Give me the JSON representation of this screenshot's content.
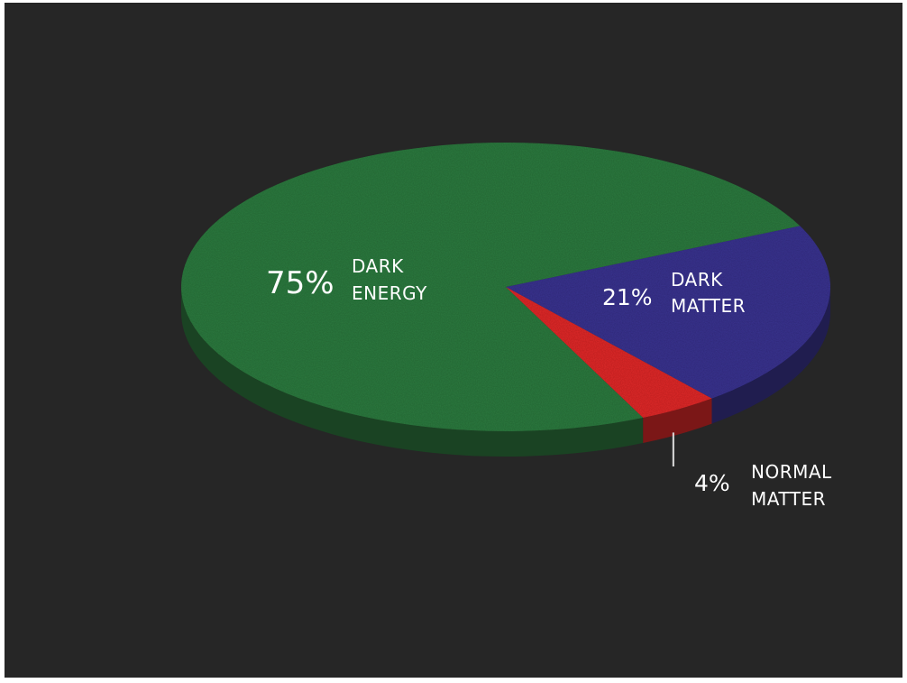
{
  "chart_data": {
    "type": "pie",
    "title": "",
    "style": "3d",
    "slices": [
      {
        "percent_label": "75%",
        "name_line1": "DARK",
        "name_line2": "ENERGY",
        "value": 75,
        "color": "#2f7a3f"
      },
      {
        "percent_label": "21%",
        "name_line1": "DARK",
        "name_line2": "MATTER",
        "value": 21,
        "color": "#3a3490"
      },
      {
        "percent_label": "4%",
        "name_line1": "NORMAL",
        "name_line2": "MATTER",
        "value": 4,
        "color": "#e02a2a"
      }
    ],
    "legend": "none",
    "background": "#262626"
  }
}
